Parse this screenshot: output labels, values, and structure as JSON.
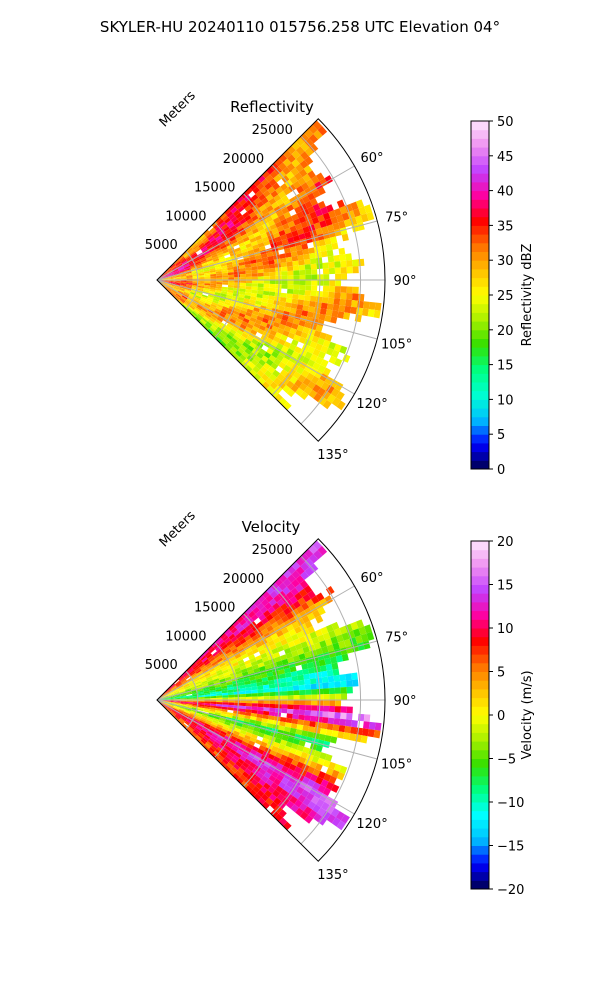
{
  "suptitle": "SKYLER-HU  20240110  015756.258 UTC Elevation 04°",
  "colors": {
    "grid": "#b0b0b0",
    "frame": "#000000"
  },
  "chart_data": [
    {
      "type": "heatmap",
      "projection": "polar-sector",
      "title": "Reflectivity",
      "radial_label": "Meters",
      "r_ticks": [
        5000,
        10000,
        15000,
        20000,
        25000
      ],
      "r_tick_labels": [
        "5000",
        "10000",
        "15000",
        "20000",
        "25000"
      ],
      "rlim": [
        0,
        28000
      ],
      "azimuth_range_deg": [
        45,
        135
      ],
      "azimuth_ticks": [
        "60°",
        "75°",
        "90°",
        "105°",
        "120°",
        "135°"
      ],
      "grid": true,
      "colorbar": {
        "label": "Reflectivity dBZ",
        "range": [
          0,
          50
        ],
        "ticks": [
          "0",
          "5",
          "10",
          "15",
          "20",
          "25",
          "30",
          "35",
          "40",
          "45",
          "50"
        ],
        "stops": [
          "#00004d",
          "#0000ff",
          "#00bfff",
          "#00ffd0",
          "#00ff80",
          "#33e000",
          "#a8f000",
          "#ffff00",
          "#ffc000",
          "#ff7000",
          "#ff0000",
          "#ff00a0",
          "#c040ff",
          "#f090f0",
          "#ffe8ff"
        ]
      },
      "field_summary": [
        {
          "azimuth_deg": 60,
          "typical_value": 33
        },
        {
          "azimuth_deg": 75,
          "typical_value": 30
        },
        {
          "azimuth_deg": 90,
          "typical_value": 26
        },
        {
          "azimuth_deg": 105,
          "typical_value": 28
        },
        {
          "azimuth_deg": 120,
          "typical_value": 27
        },
        {
          "azimuth_deg": 135,
          "typical_value": 22
        }
      ]
    },
    {
      "type": "heatmap",
      "projection": "polar-sector",
      "title": "Velocity",
      "radial_label": "Meters",
      "r_ticks": [
        5000,
        10000,
        15000,
        20000,
        25000
      ],
      "r_tick_labels": [
        "5000",
        "10000",
        "15000",
        "20000",
        "25000"
      ],
      "rlim": [
        0,
        28000
      ],
      "azimuth_range_deg": [
        45,
        135
      ],
      "azimuth_ticks": [
        "60°",
        "75°",
        "90°",
        "105°",
        "120°",
        "135°"
      ],
      "grid": true,
      "colorbar": {
        "label": "Velocity (m/s)",
        "range": [
          -20,
          20
        ],
        "ticks": [
          "−20",
          "−15",
          "−10",
          "−5",
          "0",
          "5",
          "10",
          "15",
          "20"
        ],
        "stops": [
          "#00004d",
          "#0000ff",
          "#00bfff",
          "#00ffff",
          "#00ff80",
          "#33e000",
          "#a8f000",
          "#ffff00",
          "#ffc000",
          "#ff7000",
          "#ff0000",
          "#ff00a0",
          "#c040ff",
          "#f090f0",
          "#ffe8ff"
        ]
      },
      "field_summary": [
        {
          "azimuth_deg": 50,
          "typical_value": 12
        },
        {
          "azimuth_deg": 62,
          "typical_value": 2
        },
        {
          "azimuth_deg": 75,
          "typical_value": -5
        },
        {
          "azimuth_deg": 85,
          "typical_value": -12
        },
        {
          "azimuth_deg": 95,
          "typical_value": 15
        },
        {
          "azimuth_deg": 105,
          "typical_value": -8
        },
        {
          "azimuth_deg": 120,
          "typical_value": 14
        },
        {
          "azimuth_deg": 132,
          "typical_value": 8
        }
      ]
    }
  ]
}
